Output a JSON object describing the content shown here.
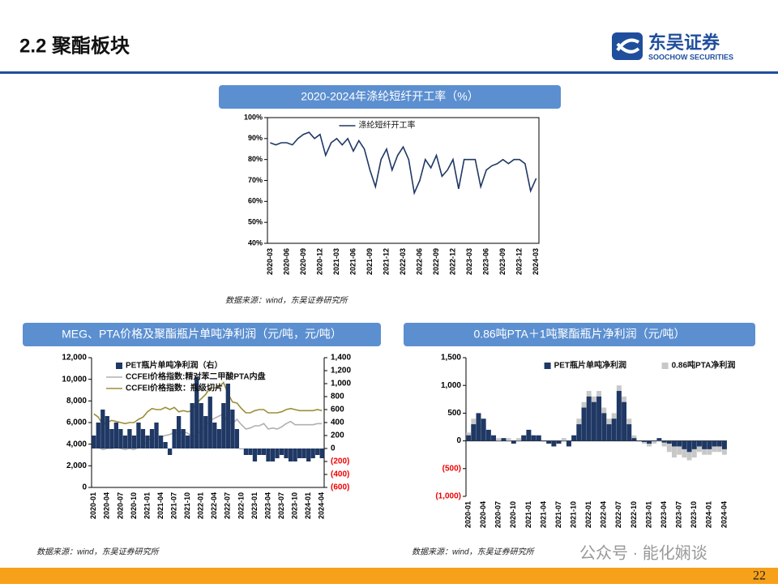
{
  "header": {
    "title": "2.2 聚酯板块",
    "logo": "东吴证券",
    "logo_sub": "SOOCHOW SECURITIES"
  },
  "sources": [
    "数据来源：wind，东吴证券研究所",
    "数据来源：wind，东吴证券研究所",
    "数据来源：wind，东吴证券研究所"
  ],
  "watermark": "公众号 · 能化娴谈",
  "page_number": "22",
  "chart_data": [
    {
      "type": "line",
      "title": "2020-2024年涤纶短纤开工率（%）",
      "legend": "upper center",
      "categories": [
        "2020-03",
        null,
        null,
        "2020-06",
        null,
        null,
        "2020-09",
        null,
        null,
        "2020-12",
        null,
        null,
        "2021-03",
        null,
        null,
        "2021-06",
        null,
        null,
        "2021-09",
        null,
        null,
        "2021-12",
        null,
        null,
        "2022-03",
        null,
        null,
        "2022-06",
        null,
        null,
        "2022-09",
        null,
        null,
        "2022-12",
        null,
        null,
        "2023-03",
        null,
        null,
        "2023-06",
        null,
        null,
        "2023-09",
        null,
        null,
        "2023-12",
        null,
        null,
        "2024-03"
      ],
      "series": [
        {
          "name": "涤纶短纤开工率",
          "color": "#1f3864",
          "type": "line",
          "values": [
            88,
            87,
            88,
            88,
            87,
            90,
            92,
            93,
            90,
            92,
            82,
            88,
            90,
            87,
            90,
            84,
            89,
            85,
            75,
            67,
            80,
            85,
            75,
            82,
            86,
            80,
            64,
            70,
            80,
            76,
            82,
            72,
            75,
            80,
            66,
            80,
            80,
            80,
            67,
            75,
            77,
            78,
            80,
            78,
            80,
            80,
            78,
            65,
            71
          ]
        }
      ],
      "ylim": [
        40,
        100
      ],
      "yticks": [
        {
          "value": 40,
          "label": "40%"
        },
        {
          "value": 50,
          "label": "50%"
        },
        {
          "value": 60,
          "label": "60%"
        },
        {
          "value": 70,
          "label": "70%"
        },
        {
          "value": 80,
          "label": "80%"
        },
        {
          "value": 90,
          "label": "90%"
        },
        {
          "value": 100,
          "label": "100%"
        }
      ]
    },
    {
      "type": "combo",
      "title": "MEG、PTA价格及聚酯瓶片单吨净利润（元/吨，元/吨）",
      "legend": "upper left",
      "categories": [
        "2020-01",
        null,
        null,
        "2020-04",
        null,
        null,
        "2020-07",
        null,
        null,
        "2020-10",
        null,
        null,
        "2021-01",
        null,
        null,
        "2021-04",
        null,
        null,
        "2021-07",
        null,
        null,
        "2021-10",
        null,
        null,
        "2022-01",
        null,
        null,
        "2022-04",
        null,
        null,
        "2022-07",
        null,
        null,
        "2022-10",
        null,
        null,
        "2023-01",
        null,
        null,
        "2023-04",
        null,
        null,
        "2023-07",
        null,
        null,
        "2023-10",
        null,
        null,
        "2024-01",
        null,
        null,
        "2024-04"
      ],
      "series": [
        {
          "name": "PET瓶片单吨净利润（右）",
          "color": "#1f3864",
          "type": "bar",
          "axis": "y2",
          "values": [
            200,
            400,
            600,
            500,
            300,
            400,
            300,
            200,
            300,
            200,
            400,
            300,
            200,
            300,
            400,
            200,
            100,
            -100,
            300,
            500,
            300,
            200,
            700,
            1100,
            700,
            500,
            800,
            400,
            300,
            700,
            1000,
            600,
            300,
            0,
            -100,
            -100,
            -200,
            -100,
            -100,
            -200,
            -200,
            -150,
            -100,
            -150,
            -200,
            -200,
            -150,
            -150,
            -200,
            -150,
            -100,
            -150
          ]
        },
        {
          "name": "CCFEI价格指数:精对苯二甲酸PTA内盘",
          "color": "#b0b0b0",
          "type": "line",
          "values": [
            4000,
            3700,
            3500,
            3600,
            3600,
            3700,
            3600,
            3500,
            3600,
            3500,
            3700,
            3900,
            4300,
            4600,
            4500,
            4700,
            4800,
            4900,
            5100,
            5000,
            5200,
            5000,
            4700,
            4800,
            5400,
            5700,
            6200,
            6400,
            6600,
            6800,
            6000,
            5900,
            6300,
            5800,
            5400,
            5500,
            5700,
            5700,
            5900,
            5400,
            5500,
            5400,
            5600,
            5900,
            6100,
            5800,
            5800,
            5800,
            5800,
            5800,
            5900,
            5900
          ]
        },
        {
          "name": "CCFEI价格指数：瓶级切片",
          "color": "#9c8f3a",
          "type": "line",
          "values": [
            6800,
            6500,
            5800,
            6000,
            6200,
            6100,
            6000,
            5900,
            6000,
            6000,
            6300,
            6500,
            7000,
            7300,
            7200,
            7200,
            7400,
            7200,
            7400,
            7000,
            7100,
            7000,
            7100,
            7800,
            8200,
            8600,
            9200,
            9200,
            9300,
            9700,
            8700,
            7900,
            7800,
            7300,
            6900,
            6900,
            7100,
            7200,
            7200,
            6900,
            6900,
            6900,
            7000,
            7200,
            7300,
            7200,
            7100,
            7100,
            7100,
            7100,
            7200,
            7100
          ]
        }
      ],
      "ylim": [
        0,
        12000
      ],
      "yticks": [
        0,
        {
          "value": 2000,
          "label": "2,000"
        },
        {
          "value": 4000,
          "label": "4,000"
        },
        {
          "value": 6000,
          "label": "6,000"
        },
        {
          "value": 8000,
          "label": "8,000"
        },
        {
          "value": 10000,
          "label": "10,000"
        },
        {
          "value": 12000,
          "label": "12,000"
        }
      ],
      "y2lim": [
        -600,
        1400
      ],
      "y2ticks": [
        {
          "value": -600,
          "label": "(600)"
        },
        {
          "value": -400,
          "label": "(400)"
        },
        {
          "value": -200,
          "label": "(200)"
        },
        0,
        200,
        400,
        600,
        800,
        {
          "value": 1000,
          "label": "1,000"
        },
        {
          "value": 1200,
          "label": "1,200"
        },
        {
          "value": 1400,
          "label": "1,400"
        }
      ]
    },
    {
      "type": "bar",
      "title": "0.86吨PTA＋1吨聚酯瓶片净利润（元/吨）",
      "legend": "upper center",
      "categories": [
        "2020-01",
        null,
        null,
        "2020-04",
        null,
        null,
        "2020-07",
        null,
        null,
        "2020-10",
        null,
        null,
        "2021-01",
        null,
        null,
        "2021-04",
        null,
        null,
        "2021-07",
        null,
        null,
        "2021-10",
        null,
        null,
        "2022-01",
        null,
        null,
        "2022-04",
        null,
        null,
        "2022-07",
        null,
        null,
        "2022-10",
        null,
        null,
        "2023-01",
        null,
        null,
        "2023-04",
        null,
        null,
        "2023-07",
        null,
        null,
        "2023-10",
        null,
        null,
        "2024-01",
        null,
        null,
        "2024-04"
      ],
      "series": [
        {
          "name": "PET瓶片单吨净利润",
          "color": "#1f3864",
          "type": "bar",
          "values": [
            100,
            300,
            500,
            400,
            200,
            100,
            0,
            50,
            0,
            -50,
            0,
            100,
            200,
            100,
            100,
            0,
            -50,
            -100,
            -50,
            0,
            -100,
            100,
            300,
            600,
            800,
            700,
            800,
            500,
            300,
            400,
            900,
            700,
            300,
            50,
            0,
            -20,
            -50,
            0,
            50,
            -30,
            -50,
            -100,
            -100,
            -150,
            -200,
            -150,
            -100,
            -150,
            -150,
            -100,
            -100,
            -150
          ]
        },
        {
          "name": "0.86吨PTA净利润",
          "color": "#c8c8c8",
          "type": "bar",
          "values": [
            150,
            400,
            500,
            300,
            200,
            100,
            50,
            50,
            50,
            0,
            50,
            100,
            150,
            100,
            50,
            0,
            -50,
            -100,
            -50,
            50,
            -100,
            100,
            400,
            700,
            900,
            800,
            900,
            600,
            400,
            500,
            1000,
            800,
            400,
            100,
            0,
            -50,
            -100,
            -50,
            0,
            -100,
            -200,
            -300,
            -250,
            -300,
            -350,
            -300,
            -200,
            -250,
            -250,
            -200,
            -200,
            -250
          ]
        }
      ],
      "ylim": [
        -1000,
        1500
      ],
      "yticks": [
        {
          "value": -1000,
          "label": "(1,000)"
        },
        {
          "value": -500,
          "label": "(500)"
        },
        0,
        500,
        {
          "value": 1000,
          "label": "1,000"
        },
        {
          "value": 1500,
          "label": "1,500"
        }
      ]
    }
  ]
}
